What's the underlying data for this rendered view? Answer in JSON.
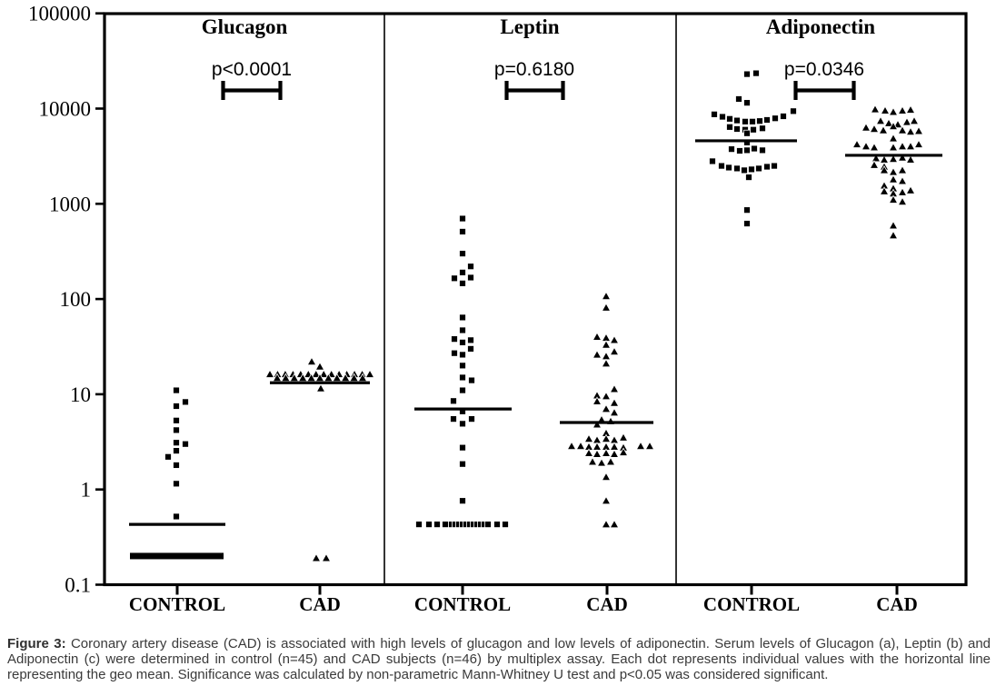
{
  "figure": {
    "caption_prefix": "Figure 3:",
    "caption_text": " Coronary artery disease (CAD) is associated with high levels of glucagon and low levels of adiponectin. Serum levels of Glucagon (a), Leptin (b) and Adiponectin (c) were determined in control (n=45) and CAD subjects (n=46) by multiplex assay. Each dot represents individual values with the horizontal line representing the geo mean. Significance was calculated by non-parametric Mann-Whitney U test and p<0.05 was considered significant."
  },
  "chart_data": {
    "type": "scatter",
    "subtype": "grouped-dot-plot",
    "marker_color": "#000000",
    "yaxis": {
      "scale": "log",
      "min": 0.1,
      "max": 100000,
      "ticks": [
        {
          "label": "100000",
          "value": 100000
        },
        {
          "label": "10000",
          "value": 10000
        },
        {
          "label": "1000",
          "value": 1000
        },
        {
          "label": "100",
          "value": 100
        },
        {
          "label": "10",
          "value": 10
        },
        {
          "label": "1",
          "value": 1
        },
        {
          "label": "0.1",
          "value": 0.1
        }
      ]
    },
    "x_group_labels": [
      "CONTROL",
      "CAD"
    ],
    "panels": [
      {
        "title": "Glucagon",
        "p_label": "p<0.0001",
        "groups": [
          {
            "label": "CONTROL",
            "marker": "square",
            "points": [
              [
                -1,
                11
              ],
              [
                9,
                8.3
              ],
              [
                -1,
                7.5
              ],
              [
                -1,
                5.3
              ],
              [
                -1,
                4.2
              ],
              [
                -1,
                3.1
              ],
              [
                9,
                3.0
              ],
              [
                -1,
                2.55
              ],
              [
                -10,
                2.2
              ],
              [
                -1,
                1.8
              ],
              [
                -1,
                1.15
              ],
              [
                -1,
                0.52
              ]
            ],
            "bars": [
              {
                "value": 0.2,
                "dx_start": -52,
                "dx_end": 51
              }
            ],
            "geo_mean": {
              "value": 0.43,
              "dx_start": -53,
              "dx_end": 53
            }
          },
          {
            "label": "CAD",
            "marker": "triangle",
            "points": [
              [
                -9,
                22
              ],
              [
                0,
                19.5
              ],
              [
                1,
                11.5
              ],
              [
                -4,
                0.19
              ],
              [
                7,
                0.19
              ]
            ],
            "rows": [
              {
                "value": 16.2,
                "dx_start": -55,
                "dx_end": 55,
                "n": 14
              },
              {
                "value": 14.8,
                "dx_start": -47,
                "dx_end": 47,
                "n": 11
              }
            ],
            "geo_mean": {
              "value": 13.2,
              "dx_start": -55,
              "dx_end": 55
            }
          }
        ]
      },
      {
        "title": "Leptin",
        "p_label": "p=0.6180",
        "groups": [
          {
            "label": "CONTROL",
            "marker": "square",
            "points": [
              [
                0,
                700
              ],
              [
                0,
                510
              ],
              [
                0,
                300
              ],
              [
                9,
                220
              ],
              [
                0,
                190
              ],
              [
                -9,
                165
              ],
              [
                9,
                168
              ],
              [
                0,
                146
              ],
              [
                0,
                64
              ],
              [
                0,
                47
              ],
              [
                -9,
                38
              ],
              [
                9,
                37
              ],
              [
                0,
                35
              ],
              [
                9,
                30
              ],
              [
                -9,
                27
              ],
              [
                0,
                26
              ],
              [
                0,
                20
              ],
              [
                0,
                15
              ],
              [
                10,
                14
              ],
              [
                0,
                11
              ],
              [
                -10,
                8.5
              ],
              [
                0,
                6.6
              ],
              [
                -10,
                5.5
              ],
              [
                10,
                5.5
              ],
              [
                0,
                4.9
              ],
              [
                0,
                2.75
              ],
              [
                0,
                1.85
              ],
              [
                0,
                0.76
              ],
              [
                -48,
                0.43
              ],
              [
                -37,
                0.43
              ],
              [
                -28,
                0.43
              ],
              [
                -19,
                0.43
              ],
              [
                28,
                0.43
              ],
              [
                38,
                0.43
              ],
              [
                47,
                0.43
              ]
            ],
            "rows": [
              {
                "value": 0.43,
                "dx_start": -12,
                "dx_end": 24,
                "n": 10
              }
            ],
            "geo_mean": {
              "value": 7.0,
              "dx_start": -53,
              "dx_end": 54
            }
          },
          {
            "label": "CAD",
            "marker": "triangle",
            "points": [
              [
                -1,
                107
              ],
              [
                -1,
                81
              ],
              [
                -11,
                40
              ],
              [
                -1,
                39
              ],
              [
                8,
                37
              ],
              [
                -1,
                33
              ],
              [
                8,
                28
              ],
              [
                -11,
                26
              ],
              [
                -1,
                25
              ],
              [
                -1,
                21
              ],
              [
                8,
                11.3
              ],
              [
                -11,
                9.7
              ],
              [
                -1,
                9.5
              ],
              [
                -11,
                8.4
              ],
              [
                8,
                8.1
              ],
              [
                -1,
                7.0
              ],
              [
                8,
                6.4
              ],
              [
                -6,
                5.4
              ],
              [
                4,
                5.2
              ],
              [
                -11,
                4.8
              ],
              [
                -1,
                3.9
              ],
              [
                -20,
                3.4
              ],
              [
                -11,
                3.3
              ],
              [
                -1,
                3.4
              ],
              [
                8,
                3.3
              ],
              [
                18,
                3.5
              ],
              [
                -39,
                2.85
              ],
              [
                -29,
                2.85
              ],
              [
                -20,
                2.8
              ],
              [
                -11,
                2.8
              ],
              [
                -1,
                2.8
              ],
              [
                8,
                2.8
              ],
              [
                18,
                2.75
              ],
              [
                37,
                2.85
              ],
              [
                47,
                2.85
              ],
              [
                -20,
                2.4
              ],
              [
                -11,
                2.35
              ],
              [
                -1,
                2.4
              ],
              [
                8,
                2.35
              ],
              [
                18,
                2.45
              ],
              [
                -16,
                1.95
              ],
              [
                -6,
                1.9
              ],
              [
                4,
                1.95
              ],
              [
                -1,
                1.35
              ],
              [
                -1,
                0.76
              ],
              [
                -1,
                0.43
              ],
              [
                8,
                0.43
              ]
            ],
            "geo_mean": {
              "value": 5.05,
              "dx_start": -52,
              "dx_end": 51
            }
          }
        ]
      },
      {
        "title": "Adiponectin",
        "p_label": "p=0.0346",
        "groups": [
          {
            "label": "CONTROL",
            "marker": "square",
            "points": [
              [
                -5,
                23000
              ],
              [
                5,
                23500
              ],
              [
                -14,
                12600
              ],
              [
                -5,
                11500
              ],
              [
                -41,
                8700
              ],
              [
                -32,
                8200
              ],
              [
                -24,
                7800
              ],
              [
                -16,
                7500
              ],
              [
                -7,
                7300
              ],
              [
                1,
                7300
              ],
              [
                9,
                7400
              ],
              [
                17,
                7600
              ],
              [
                26,
                7900
              ],
              [
                35,
                8300
              ],
              [
                46,
                9400
              ],
              [
                -24,
                6400
              ],
              [
                -16,
                6100
              ],
              [
                -7,
                6000
              ],
              [
                2,
                6000
              ],
              [
                12,
                6200
              ],
              [
                -5,
                5500
              ],
              [
                -5,
                4400
              ],
              [
                -22,
                3750
              ],
              [
                -13,
                3600
              ],
              [
                -5,
                3650
              ],
              [
                3,
                3800
              ],
              [
                12,
                3650
              ],
              [
                -43,
                2800
              ],
              [
                -33,
                2500
              ],
              [
                -25,
                2400
              ],
              [
                -16,
                2350
              ],
              [
                -8,
                2250
              ],
              [
                0,
                2300
              ],
              [
                8,
                2350
              ],
              [
                17,
                2450
              ],
              [
                25,
                2500
              ],
              [
                -3,
                1900
              ],
              [
                -5,
                860
              ],
              [
                -5,
                620
              ]
            ],
            "geo_mean": {
              "value": 4590,
              "dx_start": -62,
              "dx_end": 50
            }
          },
          {
            "label": "CAD",
            "marker": "triangle",
            "points": [
              [
                -24,
                9800
              ],
              [
                -13,
                9500
              ],
              [
                -4,
                9200
              ],
              [
                6,
                9500
              ],
              [
                15,
                9700
              ],
              [
                -18,
                7400
              ],
              [
                -9,
                7000
              ],
              [
                1,
                6800
              ],
              [
                11,
                7200
              ],
              [
                19,
                7400
              ],
              [
                -34,
                6300
              ],
              [
                -25,
                6100
              ],
              [
                -15,
                5900
              ],
              [
                -4,
                6500
              ],
              [
                6,
                5900
              ],
              [
                15,
                5700
              ],
              [
                24,
                5800
              ],
              [
                -4,
                4850
              ],
              [
                -44,
                4200
              ],
              [
                -34,
                4000
              ],
              [
                -25,
                3900
              ],
              [
                -4,
                3900
              ],
              [
                6,
                4000
              ],
              [
                15,
                4000
              ],
              [
                24,
                4200
              ],
              [
                -23,
                3000
              ],
              [
                -14,
                2900
              ],
              [
                -4,
                2950
              ],
              [
                6,
                3050
              ],
              [
                15,
                2900
              ],
              [
                -25,
                2550
              ],
              [
                -14,
                2450
              ],
              [
                -14,
                2250
              ],
              [
                -4,
                2150
              ],
              [
                6,
                2250
              ],
              [
                -4,
                1800
              ],
              [
                6,
                1730
              ],
              [
                -14,
                1550
              ],
              [
                -4,
                1450
              ],
              [
                -14,
                1350
              ],
              [
                -4,
                1280
              ],
              [
                6,
                1320
              ],
              [
                15,
                1380
              ],
              [
                -4,
                1100
              ],
              [
                6,
                1050
              ],
              [
                -4,
                590
              ],
              [
                -4,
                465
              ]
            ],
            "geo_mean": {
              "value": 3230,
              "dx_start": -57,
              "dx_end": 50
            }
          }
        ]
      }
    ]
  }
}
